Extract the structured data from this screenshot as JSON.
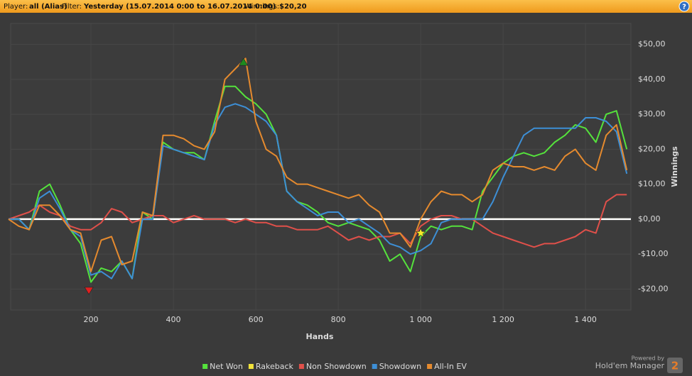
{
  "header": {
    "player_label": "Player:",
    "player": "all (Alias)",
    "filter_label": "Filter:",
    "filter": "Yesterday (15.07.2014 0:00 to 16.07.2014 0:00)",
    "winnings_label": "Winnings:",
    "winnings": "$20,20",
    "help": "?"
  },
  "branding": {
    "powered": "Powered by",
    "product": "Hold'em Manager",
    "version": "2"
  },
  "chart_data": {
    "type": "line",
    "xlabel": "Hands",
    "ylabel": "Winnings",
    "x": [
      0,
      25,
      50,
      75,
      100,
      125,
      150,
      175,
      200,
      225,
      250,
      275,
      300,
      325,
      350,
      375,
      400,
      425,
      450,
      475,
      500,
      525,
      550,
      575,
      600,
      625,
      650,
      675,
      700,
      725,
      750,
      775,
      800,
      825,
      850,
      875,
      900,
      925,
      950,
      975,
      1000,
      1025,
      1050,
      1075,
      1100,
      1125,
      1150,
      1175,
      1200,
      1225,
      1250,
      1275,
      1300,
      1325,
      1350,
      1375,
      1400,
      1425,
      1450,
      1475,
      1500
    ],
    "series": [
      {
        "name": "Net Won",
        "color": "#55e23c",
        "values": [
          0,
          0,
          -3,
          8,
          10,
          4,
          -3,
          -7,
          -18,
          -14,
          -15,
          -12,
          -17,
          2,
          0,
          22,
          20,
          19,
          19,
          17,
          28,
          38,
          38,
          35,
          33,
          30,
          24,
          8,
          5,
          4,
          2,
          -1,
          -2,
          -1,
          -2,
          -3,
          -6,
          -12,
          -10,
          -15,
          -5,
          -2,
          -3,
          -2,
          -2,
          -3,
          8,
          12,
          16,
          18,
          19,
          18,
          19,
          22,
          24,
          27,
          26,
          22,
          30,
          31,
          20
        ]
      },
      {
        "name": "Rakeback",
        "color": "#f2e33a",
        "values": [
          0,
          0,
          0,
          0,
          0,
          0,
          0,
          0,
          0,
          0,
          0,
          0,
          0,
          0,
          0,
          0,
          0,
          0,
          0,
          0,
          0,
          0,
          0,
          0,
          0,
          0,
          0,
          0,
          0,
          0,
          0,
          0,
          0,
          0,
          0,
          0,
          0,
          0,
          0,
          0,
          0,
          0,
          0,
          0,
          0,
          0,
          0,
          0,
          0,
          0,
          0,
          0,
          0,
          0,
          0,
          0,
          0,
          0,
          0,
          0,
          0
        ]
      },
      {
        "name": "Non Showdown",
        "color": "#e0504a",
        "values": [
          0,
          1,
          2,
          4,
          2,
          1,
          -2,
          -3,
          -3,
          -1,
          3,
          2,
          -1,
          0,
          1,
          1,
          -1,
          0,
          1,
          0,
          0,
          0,
          -1,
          0,
          -1,
          -1,
          -2,
          -2,
          -3,
          -3,
          -3,
          -2,
          -4,
          -6,
          -5,
          -6,
          -5,
          -5,
          -4,
          -7,
          -2,
          0,
          1,
          1,
          0,
          0,
          -2,
          -4,
          -5,
          -6,
          -7,
          -8,
          -7,
          -7,
          -6,
          -5,
          -3,
          -4,
          5,
          7,
          7
        ]
      },
      {
        "name": "Showdown",
        "color": "#3d8fd6",
        "values": [
          0,
          0,
          -3,
          6,
          8,
          3,
          -3,
          -5,
          -16,
          -15,
          -17,
          -12,
          -17,
          0,
          0,
          21,
          20,
          19,
          18,
          17,
          27,
          32,
          33,
          32,
          30,
          28,
          24,
          8,
          5,
          3,
          1,
          2,
          2,
          -1,
          0,
          -2,
          -4,
          -7,
          -8,
          -10,
          -9,
          -7,
          -1,
          0,
          0,
          0,
          0,
          5,
          12,
          18,
          24,
          26,
          26,
          26,
          26,
          26,
          29,
          29,
          28,
          25,
          13
        ]
      },
      {
        "name": "All-In EV",
        "color": "#e58a2e",
        "values": [
          0,
          -2,
          -3,
          4,
          4,
          1,
          -3,
          -4,
          -15,
          -6,
          -5,
          -13,
          -12,
          2,
          1,
          24,
          24,
          23,
          21,
          20,
          25,
          40,
          43,
          46,
          28,
          20,
          18,
          12,
          10,
          10,
          9,
          8,
          7,
          6,
          7,
          4,
          2,
          -4,
          -4,
          -8,
          0,
          5,
          8,
          7,
          7,
          5,
          7,
          14,
          16,
          15,
          15,
          14,
          15,
          14,
          18,
          20,
          16,
          14,
          24,
          27,
          14
        ]
      }
    ],
    "markers": [
      {
        "x": 195,
        "y": -20.5,
        "color": "#e02020",
        "shape": "triangle-down"
      },
      {
        "x": 570,
        "y": 45,
        "color": "#1e8a1e",
        "shape": "triangle-up"
      },
      {
        "x": 1000,
        "y": -4,
        "color": "#f7ec2a",
        "shape": "star"
      }
    ],
    "xlim": [
      0,
      1510
    ],
    "ylim": [
      -26,
      56
    ],
    "xticks": [
      200,
      400,
      600,
      800,
      {
        "value": 1000,
        "label": "1 000"
      },
      {
        "value": 1200,
        "label": "1 200"
      },
      {
        "value": 1400,
        "label": "1 400"
      }
    ],
    "yticks": [
      {
        "value": -20,
        "label": "-$20,00"
      },
      {
        "value": -10,
        "label": "-$10,00"
      },
      {
        "value": 0,
        "label": "$0,00"
      },
      {
        "value": 10,
        "label": "$10,00"
      },
      {
        "value": 20,
        "label": "$20,00"
      },
      {
        "value": 30,
        "label": "$30,00"
      },
      {
        "value": 40,
        "label": "$40,00"
      },
      {
        "value": 50,
        "label": "$50,00"
      }
    ],
    "grid": true,
    "zero_line_color": "#ffffff"
  }
}
